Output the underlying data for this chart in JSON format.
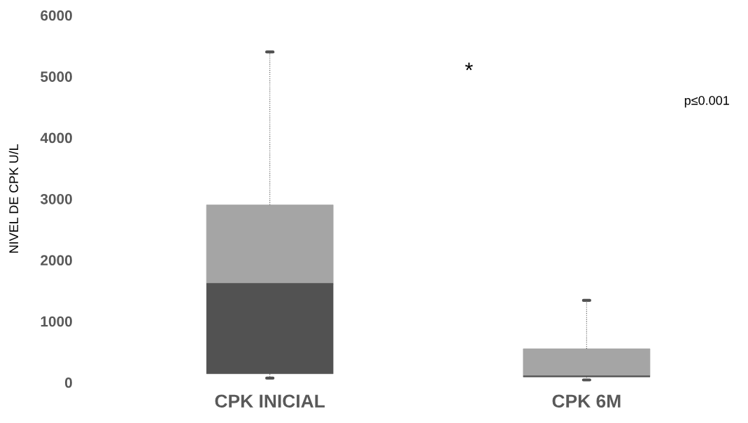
{
  "chart_data": {
    "type": "box",
    "ylabel": "NIVEL DE CPK U/L",
    "categories": [
      "CPK INICIAL",
      "CPK 6M"
    ],
    "boxes": [
      {
        "low": 70,
        "q1": 140,
        "median": 1610,
        "q3": 2900,
        "high": 5400
      },
      {
        "low": 40,
        "q1": 90,
        "median": 100,
        "q3": 550,
        "high": 1340
      }
    ],
    "colors": [
      "#525252",
      "#a5a5a5"
    ],
    "ylim": [
      0,
      6000
    ],
    "yticks": [
      0,
      1000,
      2000,
      3000,
      4000,
      5000,
      6000
    ],
    "grid": false,
    "annotations": [
      "*",
      "p≤0.001"
    ]
  }
}
